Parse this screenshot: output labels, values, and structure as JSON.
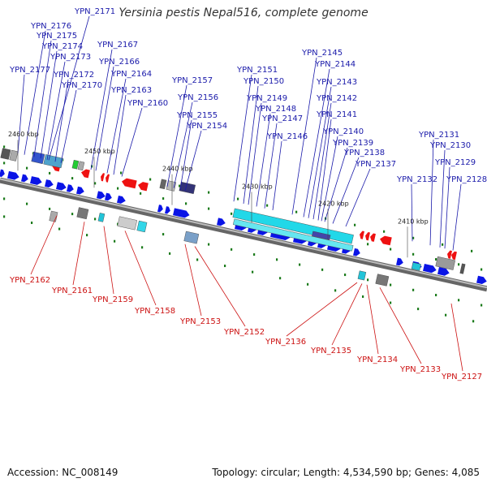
{
  "title": "Yersinia pestis Nepal516, complete genome",
  "footer": {
    "accession": "Accession: NC_008149",
    "summary": "Topology: circular; Length: 4,534,590 bp; Genes: 4,085"
  },
  "colors": {
    "forward_gene": "#0a14e6",
    "reverse_gene": "#ee1111",
    "backbone": "#777777",
    "top_label": "#1a1aaa",
    "bottom_label": "#cc1111",
    "tick": "#1a7a1a",
    "cyan_feature": "#22d8e8"
  },
  "kbp_markers": [
    "2460 kbp",
    "2450 kbp",
    "2440 kbp",
    "2430 kbp",
    "2420 kbp",
    "2410 kbp"
  ],
  "top_labels": [
    "YPN_2171",
    "YPN_2176",
    "YPN_2175",
    "YPN_2174",
    "YPN_2173",
    "YPN_2177",
    "YPN_2172",
    "YPN_2170",
    "YPN_2167",
    "YPN_2166",
    "YPN_2164",
    "YPN_2163",
    "YPN_2160",
    "YPN_2157",
    "YPN_2156",
    "YPN_2155",
    "YPN_2154",
    "YPN_2151",
    "YPN_2150",
    "YPN_2149",
    "YPN_2148",
    "YPN_2147",
    "YPN_2146",
    "YPN_2145",
    "YPN_2144",
    "YPN_2143",
    "YPN_2142",
    "YPN_2141",
    "YPN_2140",
    "YPN_2139",
    "YPN_2138",
    "YPN_2137",
    "YPN_2132",
    "YPN_2131",
    "YPN_2130",
    "YPN_2129",
    "YPN_2128"
  ],
  "bottom_labels": [
    "YPN_2162",
    "YPN_2161",
    "YPN_2159",
    "YPN_2158",
    "YPN_2153",
    "YPN_2152",
    "YPN_2136",
    "YPN_2135",
    "YPN_2134",
    "YPN_2133",
    "YPN_2127"
  ]
}
